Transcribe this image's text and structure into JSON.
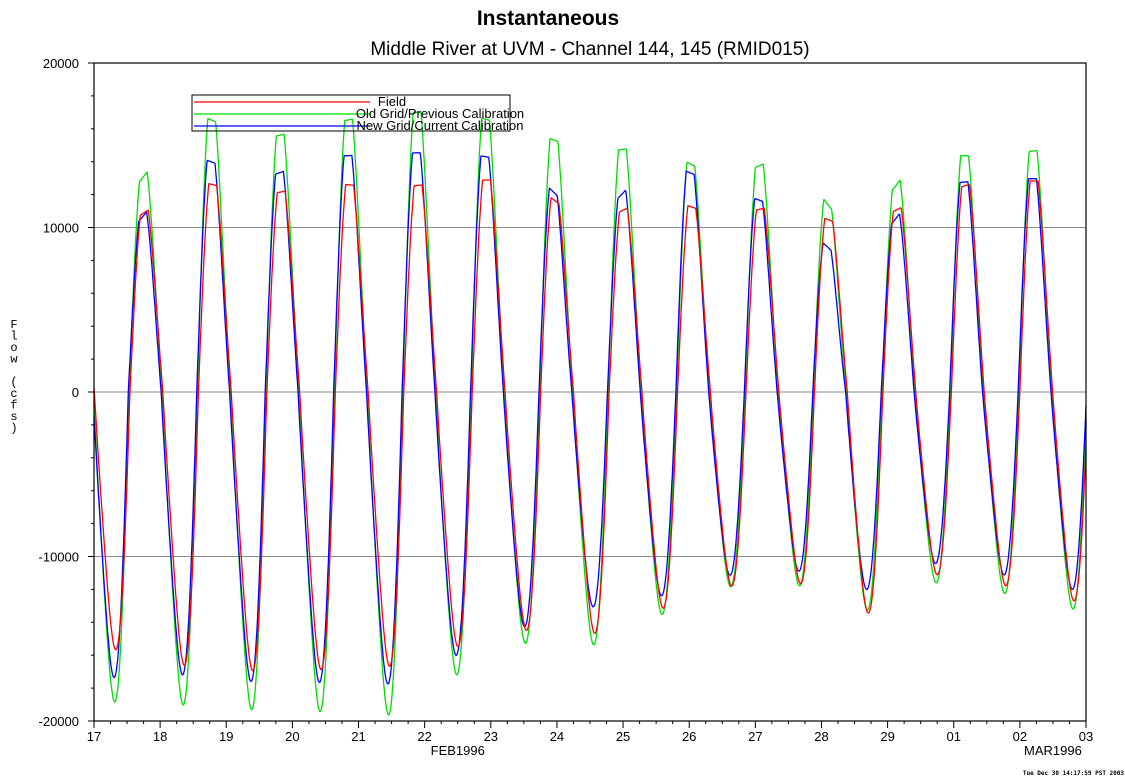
{
  "chart_data": {
    "type": "line",
    "title": "Instantaneous",
    "subtitle": "Middle River at UVM - Channel 144, 145 (RMID015)",
    "ylabel": "Flow (cfs)",
    "xlabel": "",
    "ylim": [
      -20000,
      20000
    ],
    "yticks": [
      -20000,
      -10000,
      0,
      10000,
      20000
    ],
    "ytick_labels": [
      "-20000",
      "-10000",
      "0",
      "10000",
      "20000"
    ],
    "xlim": [
      "1996-02-17",
      "1996-03-03"
    ],
    "xtick_labels": [
      "17",
      "18",
      "19",
      "20",
      "21",
      "22",
      "23",
      "24",
      "25",
      "26",
      "27",
      "28",
      "29",
      "01",
      "02",
      "03"
    ],
    "xtick_sublabels": [
      {
        "after_tick": "22",
        "text": "FEB1996"
      },
      {
        "after_tick": "02",
        "text": "MAR1996"
      }
    ],
    "grid": "horizontal at 10000, 0, -10000",
    "legend_position": "top-left",
    "series": [
      {
        "name": "Field",
        "color": "#ff0000",
        "peak_days": [
          "1996-02-17",
          "1996-02-18",
          "1996-02-19",
          "1996-02-20",
          "1996-02-21",
          "1996-02-22",
          "1996-02-23",
          "1996-02-24",
          "1996-02-25",
          "1996-02-26",
          "1996-02-27",
          "1996-02-28",
          "1996-02-29",
          "1996-03-01",
          "1996-03-02"
        ],
        "daily_max": [
          10200,
          12900,
          11900,
          12700,
          12400,
          12800,
          13000,
          10100,
          12000,
          10600,
          11500,
          9800,
          11800,
          12900,
          12800
        ],
        "daily_min": [
          -15800,
          -16900,
          -17100,
          -17000,
          -16800,
          -15600,
          -14600,
          -14900,
          -13400,
          -12000,
          -11200,
          -14200,
          -11100,
          -11500,
          -12800
        ]
      },
      {
        "name": "Old Grid/Previous Calibration",
        "color": "#00dd00",
        "peak_days": [
          "1996-02-17",
          "1996-02-18",
          "1996-02-19",
          "1996-02-20",
          "1996-02-21",
          "1996-02-22",
          "1996-02-23",
          "1996-02-24",
          "1996-02-25",
          "1996-02-26",
          "1996-02-27",
          "1996-02-28",
          "1996-02-29",
          "1996-03-01",
          "1996-03-02"
        ],
        "daily_max": [
          11800,
          17000,
          15300,
          16300,
          17000,
          17000,
          16000,
          14500,
          15000,
          12800,
          14500,
          9300,
          14500,
          14300,
          14800
        ],
        "daily_min": [
          -19000,
          -19200,
          -19500,
          -19600,
          -19800,
          -17300,
          -15400,
          -15600,
          -13800,
          -12000,
          -11500,
          -13800,
          -11600,
          -12000,
          -13300
        ]
      },
      {
        "name": "New Grid/Current Calibration",
        "color": "#0000ff",
        "peak_days": [
          "1996-02-17",
          "1996-02-18",
          "1996-02-19",
          "1996-02-20",
          "1996-02-21",
          "1996-02-22",
          "1996-02-23",
          "1996-02-24",
          "1996-02-25",
          "1996-02-26",
          "1996-02-27",
          "1996-02-28",
          "1996-02-29",
          "1996-03-01",
          "1996-03-02"
        ],
        "daily_max": [
          9500,
          14400,
          12900,
          14300,
          14500,
          14600,
          13900,
          10000,
          14200,
          12500,
          11000,
          7300,
          12500,
          12900,
          13000
        ],
        "daily_min": [
          -17500,
          -17300,
          -17800,
          -17800,
          -17900,
          -16100,
          -14400,
          -13200,
          -12600,
          -11300,
          -10700,
          -12500,
          -10400,
          -10900,
          -12100
        ]
      }
    ]
  }
}
